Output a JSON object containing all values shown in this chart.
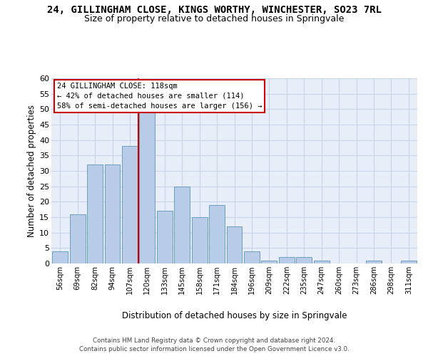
{
  "title": "24, GILLINGHAM CLOSE, KINGS WORTHY, WINCHESTER, SO23 7RL",
  "subtitle": "Size of property relative to detached houses in Springvale",
  "xlabel": "Distribution of detached houses by size in Springvale",
  "ylabel": "Number of detached properties",
  "categories": [
    "56sqm",
    "69sqm",
    "82sqm",
    "94sqm",
    "107sqm",
    "120sqm",
    "133sqm",
    "145sqm",
    "158sqm",
    "171sqm",
    "184sqm",
    "196sqm",
    "209sqm",
    "222sqm",
    "235sqm",
    "247sqm",
    "260sqm",
    "273sqm",
    "286sqm",
    "298sqm",
    "311sqm"
  ],
  "values": [
    4,
    16,
    32,
    32,
    38,
    49,
    17,
    25,
    15,
    19,
    12,
    4,
    1,
    2,
    2,
    1,
    0,
    0,
    1,
    0,
    1
  ],
  "bar_color": "#b8cce8",
  "bar_edge_color": "#6a9fc0",
  "ref_line_idx": 5,
  "annotation_line1": "24 GILLINGHAM CLOSE: 118sqm",
  "annotation_line2": "← 42% of detached houses are smaller (114)",
  "annotation_line3": "58% of semi-detached houses are larger (156) →",
  "annotation_box_fc": "#ffffff",
  "annotation_box_ec": "#cc0000",
  "ylim": [
    0,
    60
  ],
  "yticks": [
    0,
    5,
    10,
    15,
    20,
    25,
    30,
    35,
    40,
    45,
    50,
    55,
    60
  ],
  "grid_color": "#c8d4e8",
  "bg_color": "#e8eef8",
  "ref_line_color": "#cc0000",
  "footer1": "Contains HM Land Registry data © Crown copyright and database right 2024.",
  "footer2": "Contains public sector information licensed under the Open Government Licence v3.0."
}
